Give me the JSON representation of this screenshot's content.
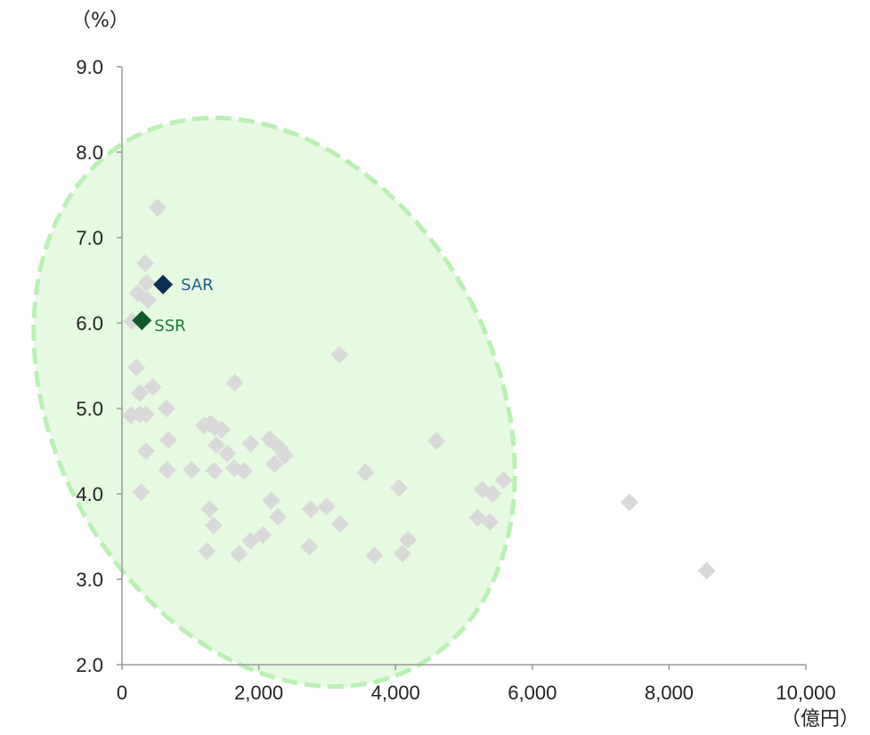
{
  "chart_data": {
    "type": "scatter",
    "x_unit_label": "（億円）",
    "y_unit_label": "（%）",
    "xlim": [
      0,
      10000
    ],
    "ylim": [
      2.0,
      9.0
    ],
    "x_ticks": [
      "0",
      "2,000",
      "4,000",
      "6,000",
      "8,000",
      "10,000"
    ],
    "x_tick_values": [
      0,
      2000,
      4000,
      6000,
      8000,
      10000
    ],
    "y_ticks": [
      "2.0",
      "3.0",
      "4.0",
      "5.0",
      "6.0",
      "7.0",
      "8.0",
      "9.0"
    ],
    "y_tick_values": [
      2.0,
      3.0,
      4.0,
      5.0,
      6.0,
      7.0,
      8.0,
      9.0
    ],
    "grid": false,
    "colors": {
      "others": "#d9d9d9",
      "sar": "#0d2d55",
      "sar_label": "#1f5b8f",
      "ssr": "#0f5a2a",
      "ssr_label": "#1e7a3a",
      "ellipse_fill": "#e6f9e1",
      "ellipse_stroke": "#b9f0b3",
      "axis": "#999999"
    },
    "highlight_points": [
      {
        "label": "SAR",
        "x": 600,
        "y": 6.45
      },
      {
        "label": "SSR",
        "x": 290,
        "y": 6.03
      }
    ],
    "points": [
      [
        520,
        7.35
      ],
      [
        340,
        6.7
      ],
      [
        360,
        6.47
      ],
      [
        230,
        6.35
      ],
      [
        380,
        6.27
      ],
      [
        150,
        6.02
      ],
      [
        210,
        5.48
      ],
      [
        260,
        5.18
      ],
      [
        450,
        5.25
      ],
      [
        130,
        4.92
      ],
      [
        260,
        4.93
      ],
      [
        350,
        4.93
      ],
      [
        650,
        5.0
      ],
      [
        680,
        4.63
      ],
      [
        350,
        4.5
      ],
      [
        280,
        4.02
      ],
      [
        660,
        4.28
      ],
      [
        1020,
        4.28
      ],
      [
        1200,
        4.8
      ],
      [
        1290,
        4.82
      ],
      [
        1360,
        4.78
      ],
      [
        1460,
        4.75
      ],
      [
        1650,
        5.3
      ],
      [
        1380,
        4.57
      ],
      [
        1540,
        4.47
      ],
      [
        1640,
        4.3
      ],
      [
        1350,
        4.27
      ],
      [
        1780,
        4.27
      ],
      [
        1880,
        4.59
      ],
      [
        2160,
        4.64
      ],
      [
        2230,
        4.35
      ],
      [
        2300,
        4.54
      ],
      [
        2380,
        4.45
      ],
      [
        2180,
        3.92
      ],
      [
        2280,
        3.73
      ],
      [
        1280,
        3.82
      ],
      [
        1340,
        3.63
      ],
      [
        1240,
        3.33
      ],
      [
        1710,
        3.3
      ],
      [
        1880,
        3.45
      ],
      [
        2060,
        3.52
      ],
      [
        2740,
        3.38
      ],
      [
        2760,
        3.82
      ],
      [
        2990,
        3.85
      ],
      [
        3190,
        3.65
      ],
      [
        3180,
        5.63
      ],
      [
        3560,
        4.25
      ],
      [
        3690,
        3.28
      ],
      [
        4050,
        4.07
      ],
      [
        4100,
        3.3
      ],
      [
        4180,
        3.46
      ],
      [
        4600,
        4.62
      ],
      [
        5200,
        3.72
      ],
      [
        5270,
        4.05
      ],
      [
        5380,
        3.67
      ],
      [
        5420,
        4.0
      ],
      [
        5580,
        4.16
      ],
      [
        7420,
        3.9
      ],
      [
        8550,
        3.1
      ]
    ]
  }
}
